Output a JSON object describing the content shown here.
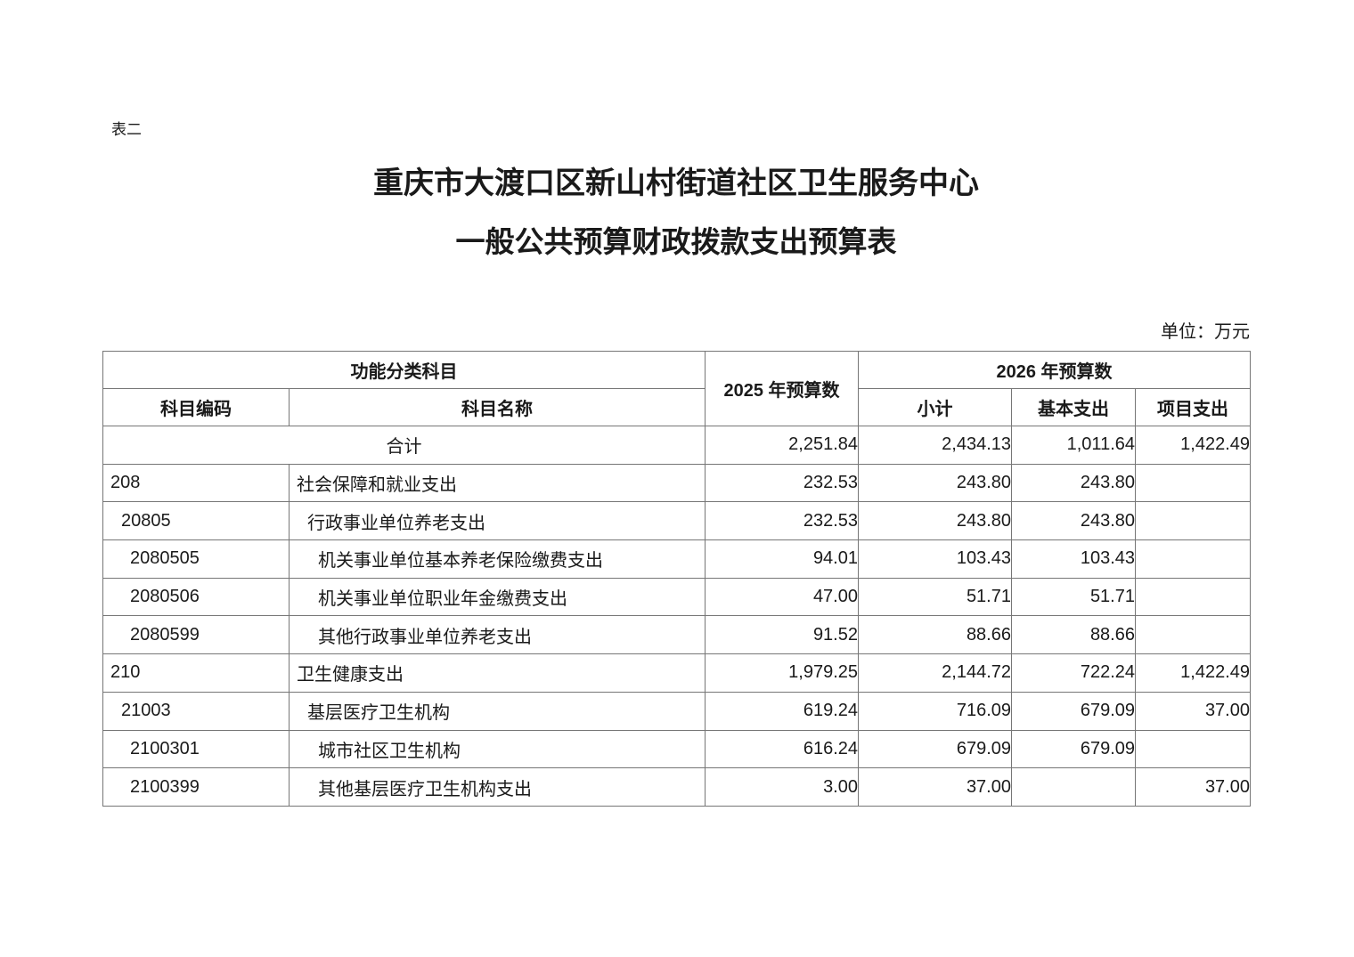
{
  "page": {
    "table_label": "表二",
    "title_line1": "重庆市大渡口区新山村街道社区卫生服务中心",
    "title_line2": "一般公共预算财政拨款支出预算表",
    "unit_note": "单位：万元"
  },
  "table": {
    "headers": {
      "functional_category": "功能分类科目",
      "code": "科目编码",
      "name": "科目名称",
      "budget_2025": "2025 年预算数",
      "budget_2026": "2026 年预算数",
      "subtotal": "小计",
      "basic": "基本支出",
      "project": "项目支出"
    },
    "rows": [
      {
        "is_total": true,
        "level": 0,
        "code": "",
        "name": "合计",
        "budget_2025": "2,251.84",
        "subtotal_2026": "2,434.13",
        "basic_2026": "1,011.64",
        "project_2026": "1,422.49"
      },
      {
        "is_total": false,
        "level": 1,
        "code": "208",
        "name": "社会保障和就业支出",
        "budget_2025": "232.53",
        "subtotal_2026": "243.80",
        "basic_2026": "243.80",
        "project_2026": ""
      },
      {
        "is_total": false,
        "level": 2,
        "code": "20805",
        "name": "行政事业单位养老支出",
        "budget_2025": "232.53",
        "subtotal_2026": "243.80",
        "basic_2026": "243.80",
        "project_2026": ""
      },
      {
        "is_total": false,
        "level": 3,
        "code": "2080505",
        "name": "机关事业单位基本养老保险缴费支出",
        "budget_2025": "94.01",
        "subtotal_2026": "103.43",
        "basic_2026": "103.43",
        "project_2026": ""
      },
      {
        "is_total": false,
        "level": 3,
        "code": "2080506",
        "name": "机关事业单位职业年金缴费支出",
        "budget_2025": "47.00",
        "subtotal_2026": "51.71",
        "basic_2026": "51.71",
        "project_2026": ""
      },
      {
        "is_total": false,
        "level": 3,
        "code": "2080599",
        "name": "其他行政事业单位养老支出",
        "budget_2025": "91.52",
        "subtotal_2026": "88.66",
        "basic_2026": "88.66",
        "project_2026": ""
      },
      {
        "is_total": false,
        "level": 1,
        "code": "210",
        "name": "卫生健康支出",
        "budget_2025": "1,979.25",
        "subtotal_2026": "2,144.72",
        "basic_2026": "722.24",
        "project_2026": "1,422.49"
      },
      {
        "is_total": false,
        "level": 2,
        "code": "21003",
        "name": "基层医疗卫生机构",
        "budget_2025": "619.24",
        "subtotal_2026": "716.09",
        "basic_2026": "679.09",
        "project_2026": "37.00"
      },
      {
        "is_total": false,
        "level": 3,
        "code": "2100301",
        "name": "城市社区卫生机构",
        "budget_2025": "616.24",
        "subtotal_2026": "679.09",
        "basic_2026": "679.09",
        "project_2026": ""
      },
      {
        "is_total": false,
        "level": 3,
        "code": "2100399",
        "name": "其他基层医疗卫生机构支出",
        "budget_2025": "3.00",
        "subtotal_2026": "37.00",
        "basic_2026": "",
        "project_2026": "37.00"
      }
    ]
  }
}
